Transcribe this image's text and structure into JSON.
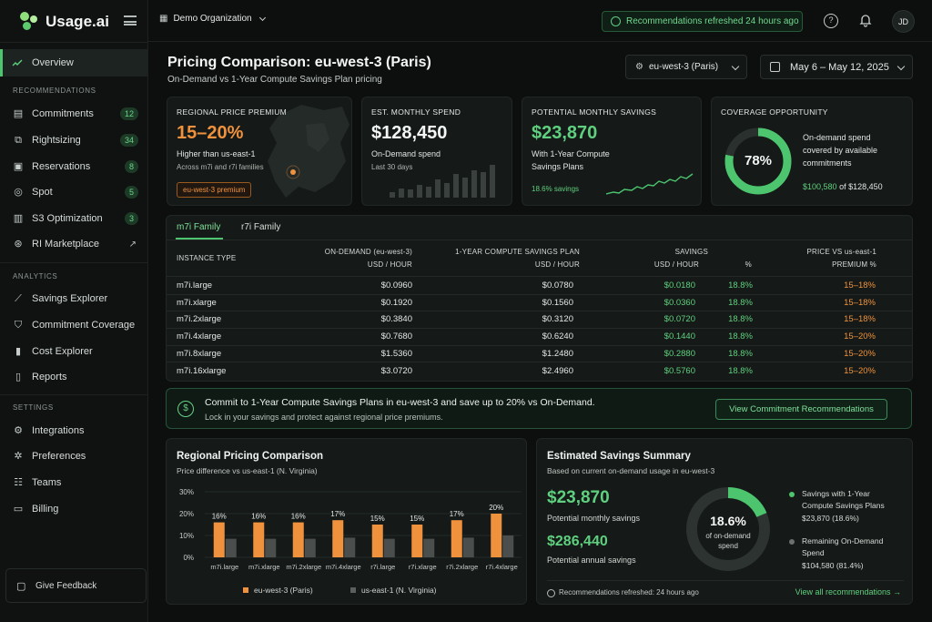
{
  "brand": {
    "name": "Usage.ai"
  },
  "nav": {
    "overview": "Overview",
    "sections": {
      "recommendations": "RECOMMENDATIONS",
      "analytics": "ANALYTICS",
      "settings": "SETTINGS"
    },
    "recommendations": [
      {
        "label": "Commitments",
        "count": "12",
        "icon": "commitments-icon"
      },
      {
        "label": "Rightsizing",
        "count": "34",
        "icon": "rightsizing-icon"
      },
      {
        "label": "Reservations",
        "count": "8",
        "icon": "reservations-icon"
      },
      {
        "label": "Spot",
        "count": "5",
        "icon": "spot-icon"
      },
      {
        "label": "S3 Optimization",
        "count": "3",
        "icon": "storage-icon"
      },
      {
        "label": "RI Marketplace",
        "icon": "marketplace-icon"
      }
    ],
    "analytics": [
      {
        "label": "Savings Explorer",
        "icon": "chart-line-icon"
      },
      {
        "label": "Commitment Coverage",
        "icon": "shield-icon"
      },
      {
        "label": "Cost Explorer",
        "icon": "bar-chart-icon"
      },
      {
        "label": "Reports",
        "icon": "report-icon"
      }
    ],
    "settings": [
      {
        "label": "Integrations",
        "icon": "gear-icon"
      },
      {
        "label": "Preferences",
        "icon": "settings-icon"
      },
      {
        "label": "Teams",
        "icon": "users-icon"
      },
      {
        "label": "Billing",
        "icon": "card-icon"
      }
    ],
    "feedback": "Give Feedback"
  },
  "topbar": {
    "org": "Demo Organization",
    "refresh": "Recommendations refreshed 24 hours ago",
    "avatar": "JD"
  },
  "header": {
    "title": "Pricing Comparison: eu-west-3 (Paris)",
    "subtitle": "On-Demand vs 1-Year Compute Savings Plan pricing",
    "region": "eu-west-3 (Paris)",
    "date_range": "May 6 – May 12, 2025"
  },
  "kpis": {
    "premium": {
      "label": "REGIONAL PRICE PREMIUM",
      "value": "15–20%",
      "line1": "Higher than us-east-1",
      "line2": "Across m7i and r7i families",
      "badge": "eu-west-3 premium"
    },
    "spend": {
      "label": "EST. MONTHLY SPEND",
      "value": "$128,450",
      "line1": "On-Demand spend",
      "line2": "Last 30 days"
    },
    "savings": {
      "label": "POTENTIAL MONTHLY SAVINGS",
      "value": "$23,870",
      "line1": "With 1-Year Compute",
      "line1b": "Savings Plans",
      "line2": "18.6% savings"
    },
    "coverage": {
      "label": "COVERAGE OPPORTUNITY",
      "value": "78%",
      "percent": 78,
      "line1": "On-demand spend",
      "line1b": "covered by available",
      "line1c": "commitments",
      "amount": "$100,580",
      "of": "of $128,450"
    }
  },
  "table": {
    "tabs": [
      "m7i Family",
      "r7i Family"
    ],
    "headers": {
      "instance": "INSTANCE TYPE",
      "ondemand": "ON-DEMAND (eu-west-3)",
      "ondemand_unit": "USD / HOUR",
      "sp": "1-YEAR COMPUTE SAVINGS PLAN",
      "sp_unit": "USD / HOUR",
      "savings": "SAVINGS",
      "savings_unit": "USD / HOUR",
      "pct_unit": "%",
      "price": "PRICE VS us-east-1",
      "price_unit": "PREMIUM %"
    },
    "rows": [
      {
        "type": "m7i.large",
        "od": "$0.0960",
        "sp": "$0.0780",
        "sav": "$0.0180",
        "pct": "18.8%",
        "prem": "15–18%"
      },
      {
        "type": "m7i.xlarge",
        "od": "$0.1920",
        "sp": "$0.1560",
        "sav": "$0.0360",
        "pct": "18.8%",
        "prem": "15–18%"
      },
      {
        "type": "m7i.2xlarge",
        "od": "$0.3840",
        "sp": "$0.3120",
        "sav": "$0.0720",
        "pct": "18.8%",
        "prem": "15–18%"
      },
      {
        "type": "m7i.4xlarge",
        "od": "$0.7680",
        "sp": "$0.6240",
        "sav": "$0.1440",
        "pct": "18.8%",
        "prem": "15–20%"
      },
      {
        "type": "m7i.8xlarge",
        "od": "$1.5360",
        "sp": "$1.2480",
        "sav": "$0.2880",
        "pct": "18.8%",
        "prem": "15–20%"
      },
      {
        "type": "m7i.16xlarge",
        "od": "$3.0720",
        "sp": "$2.4960",
        "sav": "$0.5760",
        "pct": "18.8%",
        "prem": "15–20%"
      }
    ]
  },
  "banner": {
    "headline": "Commit to 1-Year Compute Savings Plans in eu-west-3 and save up to 20% vs On-Demand.",
    "sub": "Lock in your savings and protect against regional price premiums.",
    "button": "View Commitment Recommendations"
  },
  "regional": {
    "title": "Regional Pricing Comparison",
    "subtitle": "Price difference vs us-east-1 (N. Virginia)"
  },
  "summary": {
    "title": "Estimated Savings Summary",
    "subtitle": "Based on current on-demand usage in eu-west-3",
    "monthly": "$23,870",
    "monthly_label": "Potential monthly savings",
    "annual": "$286,440",
    "annual_label": "Potential annual savings",
    "donut_value": "18.6%",
    "donut_l1": "of on-demand",
    "donut_l2": "spend",
    "leg1a": "Savings with 1-Year",
    "leg1b": "Compute Savings Plans",
    "leg1c": "$23,870 (18.6%)",
    "leg2a": "Remaining On-Demand",
    "leg2b": "Spend",
    "leg2c": "$104,580 (81.4%)",
    "refreshed": "Recommendations refreshed: 24 hours ago",
    "link": "View all recommendations →"
  },
  "chart_data": {
    "type": "bar",
    "categories": [
      "m7i.large",
      "m7i.xlarge",
      "m7i.2xlarge",
      "m7i.4xlarge",
      "r7i.large",
      "r7i.xlarge",
      "r7i.2xlarge",
      "r7i.4xlarge"
    ],
    "series": [
      {
        "name": "eu-west-3 (Paris)",
        "values": [
          16,
          16,
          16,
          17,
          15,
          15,
          17,
          20
        ],
        "labels": [
          "16%",
          "16%",
          "16%",
          "17%",
          "15%",
          "15%",
          "17%",
          "20%"
        ],
        "color": "#f0923d"
      },
      {
        "name": "us-east-1 (N. Virginia)",
        "values": [
          8.5,
          8.5,
          8.5,
          9,
          8.5,
          8.5,
          9,
          10
        ],
        "color": "#4a4f4d"
      }
    ],
    "yticks": [
      "30%",
      "20%",
      "10%",
      "0%"
    ],
    "ylim": [
      0,
      30
    ]
  },
  "colors": {
    "accent": "#4cc56e",
    "orange": "#f0923d",
    "green": "#5fd07f"
  }
}
